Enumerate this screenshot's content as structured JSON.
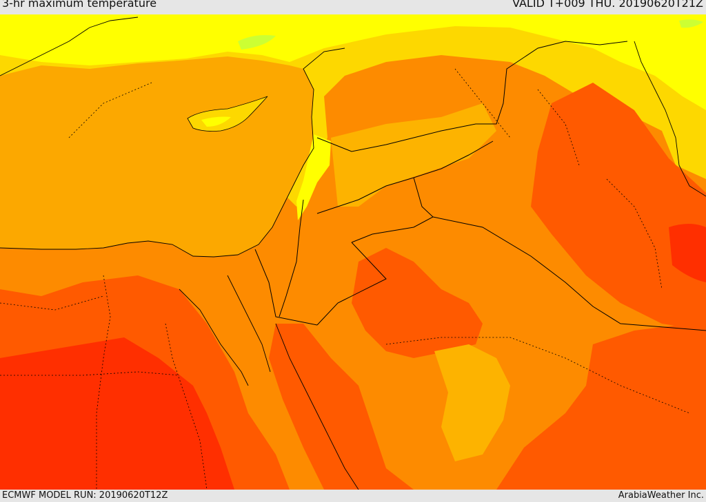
{
  "header": {
    "title": "3-hr maximum temperature",
    "valid": "VALID T+009 THU. 20190620T21Z"
  },
  "footer": {
    "model_run": "ECMWF MODEL RUN: 20190620T12Z",
    "credit": "ArabiaWeather Inc."
  },
  "colors": {
    "sea_band": "#fca800",
    "band_yellow": "#ffff00",
    "band_gold": "#fdd800",
    "band_lightorange": "#fdb300",
    "band_orange": "#fd8b00",
    "band_darkorange": "#ff5a00",
    "band_red": "#ff2f00",
    "band_green": "#ccff33",
    "border_line": "#000000"
  }
}
